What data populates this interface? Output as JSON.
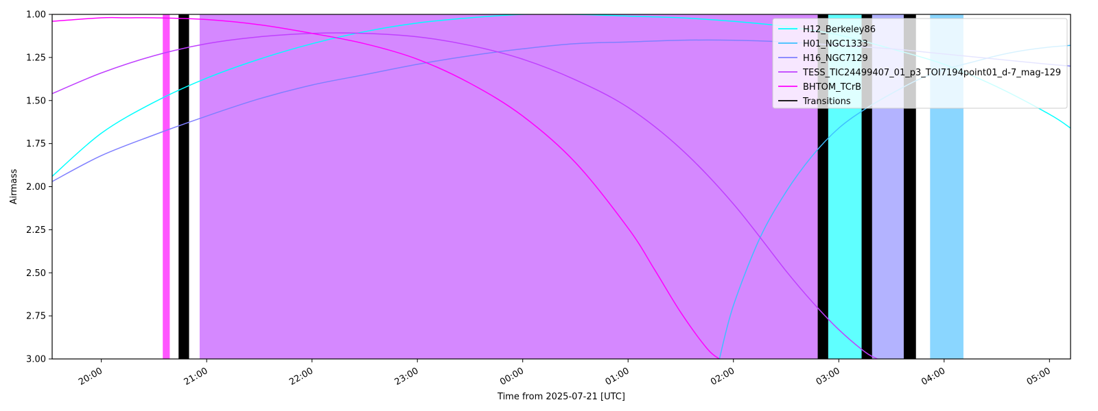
{
  "chart_data": {
    "type": "line",
    "title": "",
    "xlabel": "Time from 2025-07-21 [UTC]",
    "ylabel": "Airmass",
    "x_unit": "UTC time",
    "xlim": [
      "19:32",
      "05:12"
    ],
    "ylim": [
      1.0,
      3.0
    ],
    "y_inverted": true,
    "x_ticks": [
      "20:00",
      "21:00",
      "22:00",
      "23:00",
      "00:00",
      "01:00",
      "02:00",
      "03:00",
      "04:00",
      "05:00"
    ],
    "y_ticks": [
      "1.00",
      "1.25",
      "1.50",
      "1.75",
      "2.00",
      "2.25",
      "2.50",
      "2.75",
      "3.00"
    ],
    "legend_position": "top-right",
    "grid": false,
    "series": [
      {
        "name": "H12_Berkeley86",
        "color": "#00ffff",
        "x": [
          "19:32",
          "20:00",
          "20:30",
          "21:00",
          "21:30",
          "22:00",
          "22:30",
          "23:00",
          "23:30",
          "00:00",
          "00:30",
          "01:00",
          "01:30",
          "02:00",
          "02:30",
          "03:00",
          "03:30",
          "04:00",
          "04:30",
          "05:00",
          "05:12"
        ],
        "y": [
          1.94,
          1.69,
          1.51,
          1.37,
          1.26,
          1.17,
          1.1,
          1.05,
          1.02,
          1.0,
          1.0,
          1.01,
          1.02,
          1.04,
          1.07,
          1.12,
          1.2,
          1.29,
          1.42,
          1.58,
          1.66
        ]
      },
      {
        "name": "H01_NGC1333",
        "color": "#3fbfff",
        "x": [
          "01:52",
          "02:00",
          "02:15",
          "02:30",
          "02:45",
          "03:00",
          "03:15",
          "03:30",
          "03:45",
          "04:00",
          "04:15",
          "04:30",
          "04:45",
          "05:00",
          "05:12"
        ],
        "y": [
          3.0,
          2.69,
          2.3,
          2.03,
          1.82,
          1.66,
          1.55,
          1.46,
          1.38,
          1.32,
          1.28,
          1.24,
          1.21,
          1.19,
          1.18
        ]
      },
      {
        "name": "H16_NGC7129",
        "color": "#7f7fff",
        "x": [
          "19:32",
          "20:00",
          "20:30",
          "21:00",
          "21:30",
          "22:00",
          "22:30",
          "23:00",
          "23:30",
          "00:00",
          "00:30",
          "01:00",
          "01:30",
          "02:00",
          "02:30",
          "03:00",
          "03:30",
          "04:00",
          "04:30",
          "05:00",
          "05:12"
        ],
        "y": [
          1.97,
          1.82,
          1.7,
          1.59,
          1.49,
          1.41,
          1.35,
          1.29,
          1.24,
          1.2,
          1.17,
          1.16,
          1.15,
          1.15,
          1.16,
          1.18,
          1.2,
          1.23,
          1.26,
          1.29,
          1.3
        ]
      },
      {
        "name": "TESS_TIC24499407_01_p3_TOI7194point01_d-7_mag-129",
        "color": "#bf3fff",
        "x": [
          "19:32",
          "20:00",
          "20:30",
          "21:00",
          "21:30",
          "22:00",
          "22:30",
          "23:00",
          "23:30",
          "00:00",
          "00:30",
          "01:00",
          "01:30",
          "02:00",
          "02:30",
          "02:45",
          "03:00",
          "03:15",
          "03:22"
        ],
        "y": [
          1.46,
          1.34,
          1.24,
          1.17,
          1.13,
          1.11,
          1.11,
          1.13,
          1.18,
          1.26,
          1.38,
          1.54,
          1.78,
          2.1,
          2.49,
          2.67,
          2.83,
          2.96,
          3.0
        ]
      },
      {
        "name": "BHTOM_TCrB",
        "color": "#ff00ff",
        "x": [
          "19:32",
          "20:00",
          "20:15",
          "20:30",
          "21:00",
          "21:30",
          "22:00",
          "22:30",
          "23:00",
          "23:30",
          "00:00",
          "00:30",
          "01:00",
          "01:15",
          "01:30",
          "01:45",
          "01:52"
        ],
        "y": [
          1.04,
          1.02,
          1.02,
          1.02,
          1.03,
          1.06,
          1.11,
          1.17,
          1.26,
          1.4,
          1.59,
          1.86,
          2.24,
          2.48,
          2.73,
          2.94,
          3.0
        ]
      },
      {
        "name": "Transitions",
        "color": "#000000",
        "x": [],
        "y": []
      }
    ],
    "bands": [
      {
        "start": "20:35",
        "end": "20:39",
        "color": "#ff55ff"
      },
      {
        "start": "20:39",
        "end": "20:44",
        "color": "#ffffff"
      },
      {
        "start": "20:44",
        "end": "20:50",
        "color": "#000000"
      },
      {
        "start": "20:50",
        "end": "20:56",
        "color": "#ffffff"
      },
      {
        "start": "20:56",
        "end": "02:48",
        "color": "#d588ff"
      },
      {
        "start": "02:48",
        "end": "02:54",
        "color": "#000000"
      },
      {
        "start": "02:54",
        "end": "03:13",
        "color": "#5fffff"
      },
      {
        "start": "03:13",
        "end": "03:19",
        "color": "#000000"
      },
      {
        "start": "03:19",
        "end": "03:37",
        "color": "#b3b3ff"
      },
      {
        "start": "03:37",
        "end": "03:44",
        "color": "#000000"
      },
      {
        "start": "03:44",
        "end": "03:52",
        "color": "#ffffff"
      },
      {
        "start": "03:52",
        "end": "04:11",
        "color": "#8ad6ff"
      }
    ]
  }
}
